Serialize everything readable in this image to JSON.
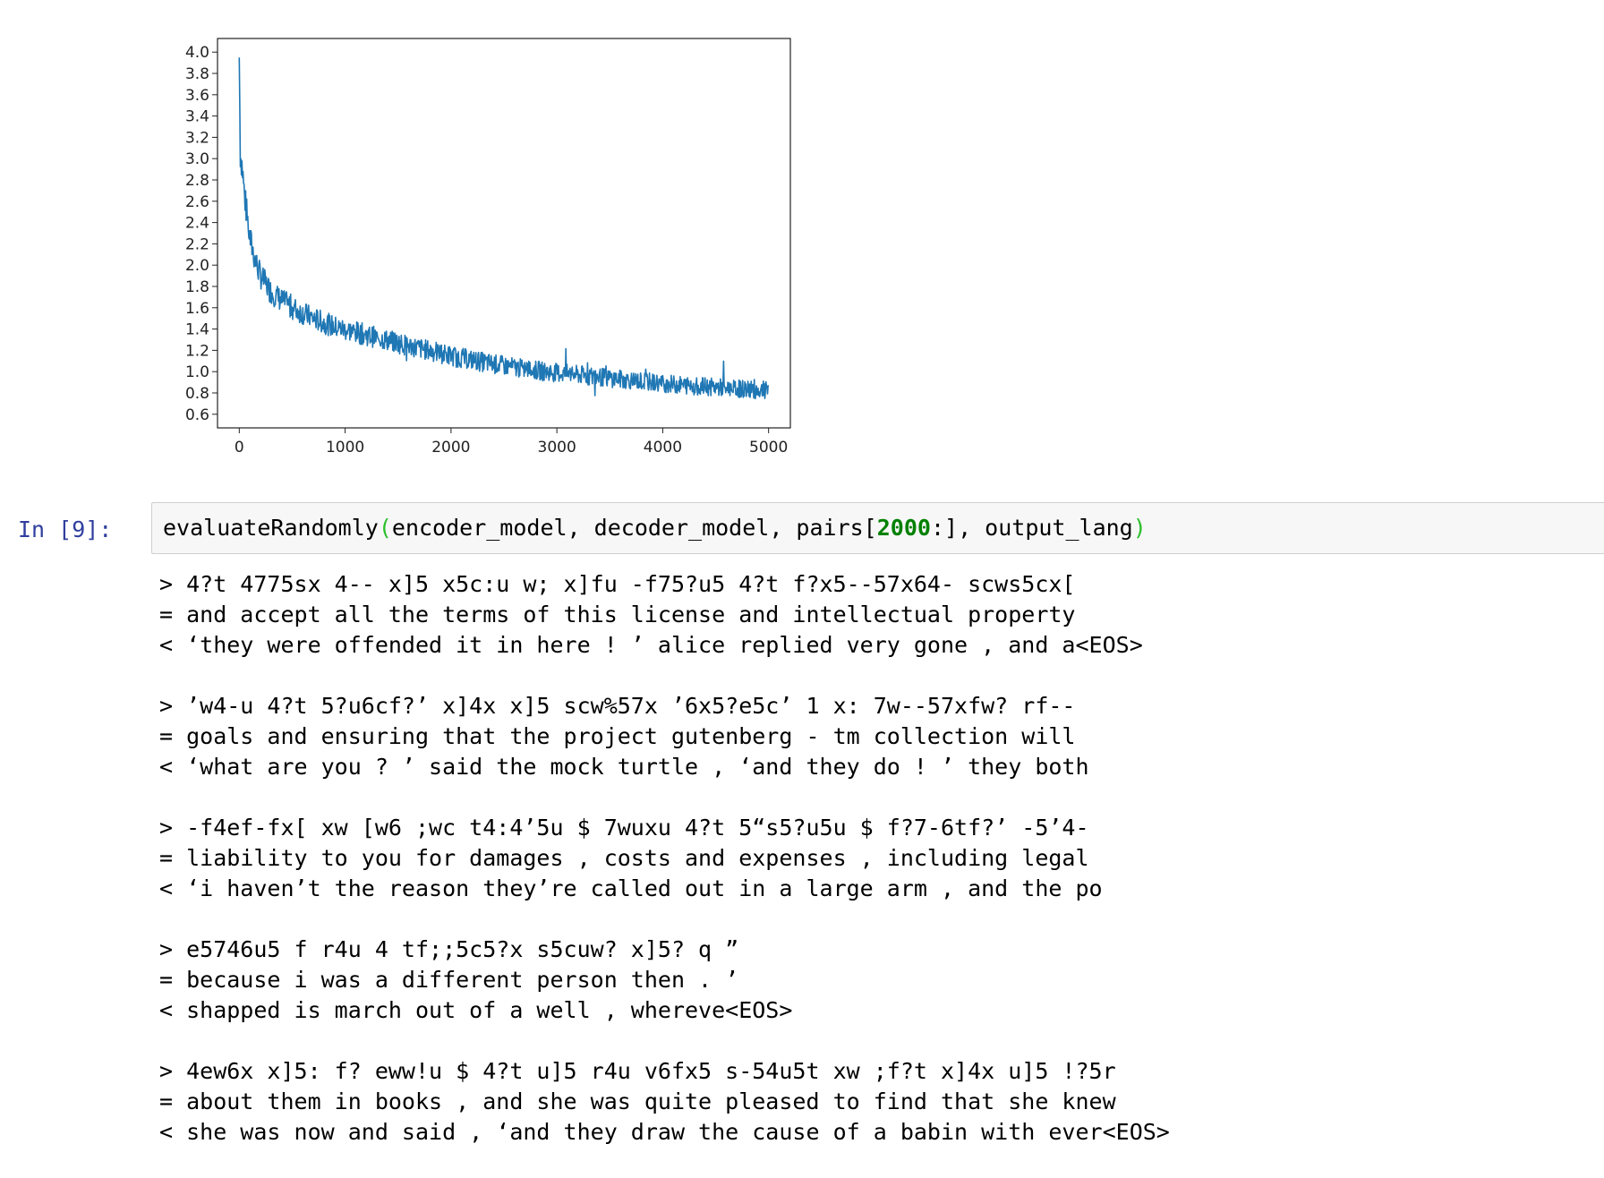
{
  "chart_data": {
    "type": "line",
    "title": "",
    "xlabel": "",
    "ylabel": "",
    "xlim": [
      0,
      5000
    ],
    "ylim": [
      0.6,
      4.0
    ],
    "x_ticks": [
      "0",
      "1000",
      "2000",
      "3000",
      "4000",
      "5000"
    ],
    "y_ticks": [
      "0.6",
      "0.8",
      "1.0",
      "1.2",
      "1.4",
      "1.6",
      "1.8",
      "2.0",
      "2.2",
      "2.4",
      "2.6",
      "2.8",
      "3.0",
      "3.2",
      "3.4",
      "3.6",
      "3.8",
      "4.0"
    ],
    "line_color": "#1f77b4",
    "grid": false,
    "series": [
      {
        "x": [
          0,
          10,
          25,
          50,
          75,
          100,
          150,
          200,
          300,
          400,
          500,
          700,
          900,
          1100,
          1300,
          1500,
          1700,
          2000,
          2300,
          2600,
          2900,
          3200,
          3500,
          3800,
          4100,
          4400,
          4700,
          5000
        ],
        "y": [
          3.95,
          3.05,
          2.95,
          2.65,
          2.45,
          2.25,
          2.05,
          1.9,
          1.75,
          1.67,
          1.6,
          1.5,
          1.42,
          1.37,
          1.32,
          1.27,
          1.22,
          1.15,
          1.09,
          1.04,
          1.0,
          0.97,
          0.94,
          0.91,
          0.88,
          0.86,
          0.84,
          0.82
        ]
      }
    ]
  },
  "cell": {
    "prompt": "In [9]:",
    "code": {
      "func": "evaluateRandomly",
      "open_paren": "(",
      "args_before": "encoder_model, decoder_model, pairs[",
      "num": "2000",
      "args_after": ":], output_lang",
      "close_paren": ")"
    }
  },
  "output": {
    "blocks": [
      [
        "> 4?t 4775sx 4-- x]5 x5c:u w; x]fu -f75?u5 4?t f?x5--57x64- scws5cx[",
        "= and accept all the terms of this license and intellectual property",
        "< ‘they were offended it in here ! ’ alice replied very gone , and a<EOS>"
      ],
      [
        "> ’w4-u 4?t 5?u6cf?’ x]4x x]5 scw%57x ’6x5?e5c’ 1 x: 7w--57xfw? rf--",
        "= goals and ensuring that the project gutenberg - tm collection will",
        "< ‘what are you ? ’ said the mock turtle , ‘and they do ! ’ they both"
      ],
      [
        "> -f4ef-fx[ xw [w6 ;wc t4:4’5u $ 7wuxu 4?t 5“s5?u5u $ f?7-6tf?’ -5’4-",
        "= liability to you for damages , costs and expenses , including legal",
        "< ‘i haven’t the reason they’re called out in a large arm , and the po"
      ],
      [
        "> e5746u5 f r4u 4 tf;;5c5?x s5cuw? x]5? q ”",
        "= because i was a different person then . ’",
        "< shapped is march out of a well , whereve<EOS>"
      ],
      [
        "> 4ew6x x]5: f? eww!u $ 4?t u]5 r4u v6fx5 s-54u5t xw ;f?t x]4x u]5 !?5r",
        "= about them in books , and she was quite pleased to find that she knew",
        "< she was now and said , ‘and they draw the cause of a babin with ever<EOS>"
      ]
    ]
  }
}
